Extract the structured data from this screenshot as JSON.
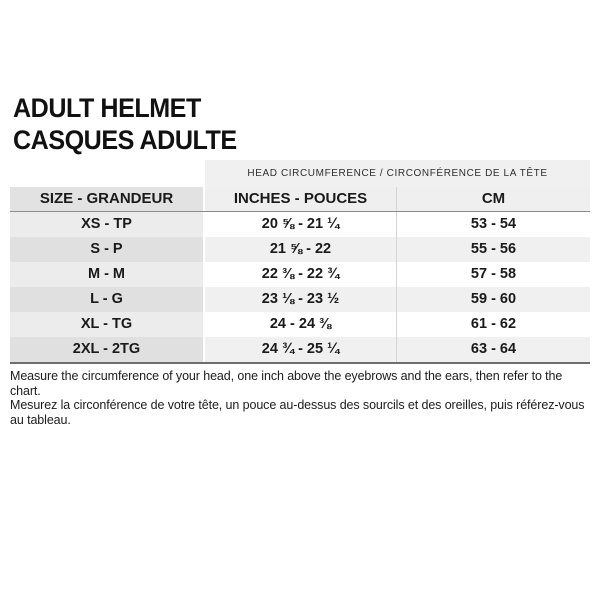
{
  "title": {
    "line1": "ADULT HELMET",
    "line2": "CASQUES ADULTE"
  },
  "table": {
    "band_header": "HEAD CIRCUMFERENCE / CIRCONFÉRENCE DE LA TÊTE",
    "columns": {
      "size": "SIZE - GRANDEUR",
      "inches": "INCHES - POUCES",
      "cm": "CM"
    },
    "rows": [
      {
        "size": "XS - TP",
        "inches": "20 ⅝ - 21 ¼",
        "cm": "53 - 54"
      },
      {
        "size": "S - P",
        "inches": "21 ⅝ - 22",
        "cm": "55 - 56"
      },
      {
        "size": "M - M",
        "inches": "22 ⅜ - 22 ¾",
        "cm": "57 - 58"
      },
      {
        "size": "L - G",
        "inches": "23 ⅛ - 23 ½",
        "cm": "59 - 60"
      },
      {
        "size": "XL - TG",
        "inches": "24 - 24 ⅜",
        "cm": "61 - 62"
      },
      {
        "size": "2XL - 2TG",
        "inches": "24 ¾ - 25 ¼",
        "cm": "63 - 64"
      }
    ]
  },
  "footer": {
    "line1": "Measure the circumference of your head, one inch above the eyebrows and the ears, then refer to the chart.",
    "line2": "Mesurez la circonférence de votre tête, un pouce au-dessus des sourcils et des oreilles, puis référez-vous au tableau."
  },
  "colors": {
    "background": "#ffffff",
    "text": "#111111",
    "band_bg": "#f0f0f0",
    "size_col_header_bg": "#e2e2e2",
    "size_col_row_bg": "#ececec",
    "size_col_row_alt_bg": "#e0e0e0",
    "data_row_bg": "#ffffff",
    "data_row_alt_bg": "#f0f0f0",
    "header_border": "#8b8b8b",
    "bottom_border": "#6e6e6e"
  },
  "chart_data": {
    "type": "table",
    "title": "ADULT HELMET / CASQUES ADULTE",
    "group_header": "HEAD CIRCUMFERENCE / CIRCONFÉRENCE DE LA TÊTE",
    "columns": [
      "SIZE - GRANDEUR",
      "INCHES - POUCES",
      "CM"
    ],
    "rows": [
      [
        "XS - TP",
        "20 ⅝ - 21 ¼",
        "53 - 54"
      ],
      [
        "S - P",
        "21 ⅝ - 22",
        "55 - 56"
      ],
      [
        "M - M",
        "22 ⅜ - 22 ¾",
        "57 - 58"
      ],
      [
        "L - G",
        "23 ⅛ - 23 ½",
        "59 - 60"
      ],
      [
        "XL - TG",
        "24 - 24 ⅜",
        "61 - 62"
      ],
      [
        "2XL - 2TG",
        "24 ¾ - 25 ¼",
        "63 - 64"
      ]
    ],
    "notes": [
      "Measure the circumference of your head, one inch above the eyebrows and the ears, then refer to the chart.",
      "Mesurez la circonférence de votre tête, un pouce au-dessus des sourcils et des oreilles, puis référez-vous au tableau."
    ]
  }
}
